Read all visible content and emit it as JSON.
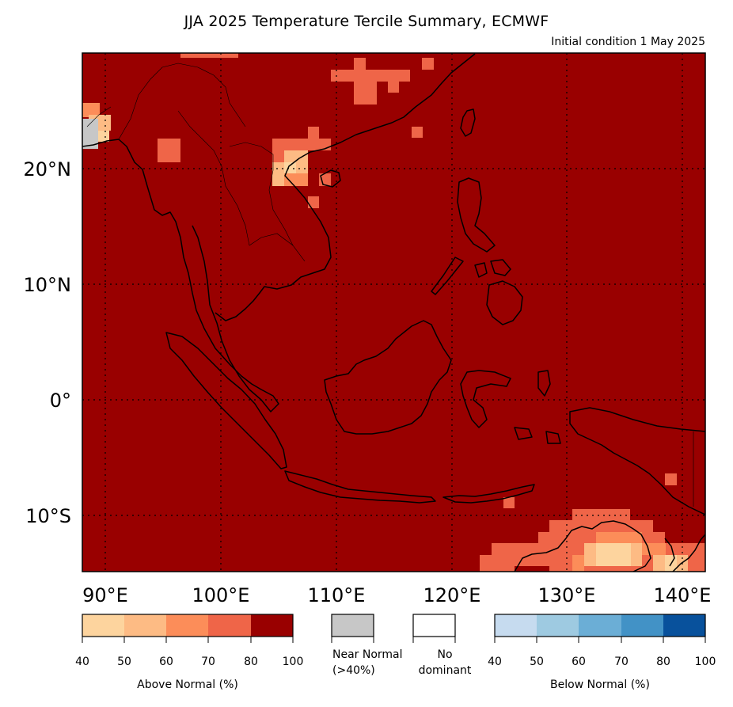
{
  "title": "JJA 2025 Temperature Tercile Summary, ECMWF",
  "subtitle": "Initial condition 1 May 2025",
  "axes": {
    "lon_ticks": [
      "90°E",
      "100°E",
      "110°E",
      "120°E",
      "130°E",
      "140°E"
    ],
    "lat_ticks": [
      "20°N",
      "10°N",
      "0°",
      "10°S"
    ]
  },
  "colors": {
    "above": [
      "#fdd49e",
      "#fdbb84",
      "#fc8d59",
      "#ef6548",
      "#990000"
    ],
    "below": [
      "#c6dbef",
      "#9ecae1",
      "#6baed6",
      "#4292c6",
      "#08519c"
    ],
    "near_normal": "#c7c7c7",
    "no_dominant": "#ffffff",
    "land_outline": "#000000"
  },
  "legend": {
    "above": {
      "label": "Above Normal (%)",
      "ticks": [
        "40",
        "50",
        "60",
        "70",
        "80",
        "100"
      ]
    },
    "near_normal": {
      "label_line1": "Near Normal",
      "label_line2": "(>40%)"
    },
    "no_dominant": {
      "label_line1": "No",
      "label_line2": "dominant"
    },
    "below": {
      "label": "Below Normal (%)",
      "ticks": [
        "40",
        "50",
        "60",
        "70",
        "80",
        "100"
      ]
    }
  }
}
